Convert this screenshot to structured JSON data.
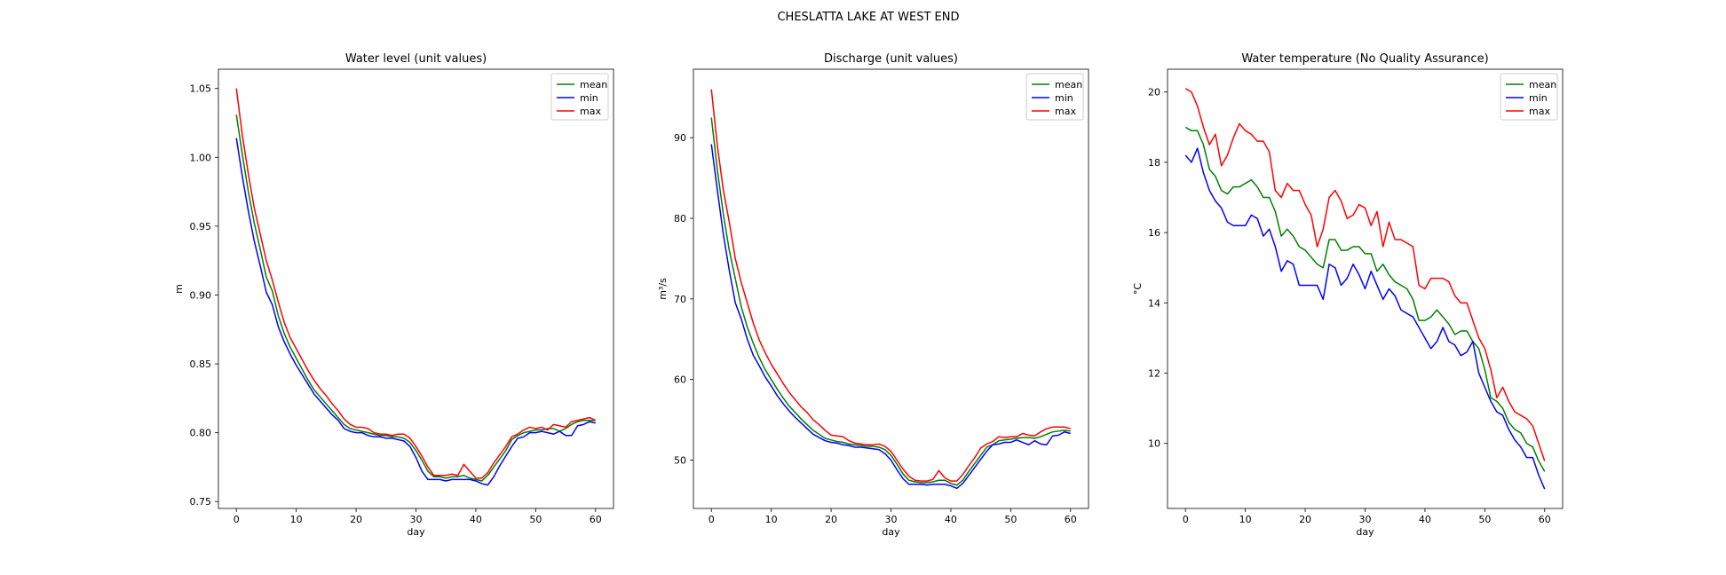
{
  "figure": {
    "suptitle": "CHESLATTA LAKE AT WEST END"
  },
  "chart_data": [
    {
      "type": "line",
      "title": "Water level (unit values)",
      "xlabel": "day",
      "ylabel": "m",
      "xlim": [
        -3,
        63
      ],
      "ylim": [
        0.745,
        1.064
      ],
      "xticks": [
        0,
        10,
        20,
        30,
        40,
        50,
        60
      ],
      "yticks": [
        0.75,
        0.8,
        0.85,
        0.9,
        0.95,
        1.0,
        1.05
      ],
      "ytick_labels": [
        "0.75",
        "0.80",
        "0.85",
        "0.90",
        "0.95",
        "1.00",
        "1.05"
      ],
      "legend": "top-right",
      "x": [
        0,
        1,
        2,
        3,
        4,
        5,
        6,
        7,
        8,
        9,
        10,
        11,
        12,
        13,
        14,
        15,
        16,
        17,
        18,
        19,
        20,
        21,
        22,
        23,
        24,
        25,
        26,
        27,
        28,
        29,
        30,
        31,
        32,
        33,
        34,
        35,
        36,
        37,
        38,
        39,
        40,
        41,
        42,
        43,
        44,
        45,
        46,
        47,
        48,
        49,
        50,
        51,
        52,
        53,
        54,
        55,
        56,
        57,
        58,
        59,
        60
      ],
      "series": [
        {
          "name": "mean",
          "color": "#008000",
          "values": [
            1.031,
            1.002,
            0.975,
            0.952,
            0.933,
            0.913,
            0.903,
            0.885,
            0.872,
            0.862,
            0.854,
            0.846,
            0.838,
            0.831,
            0.826,
            0.821,
            0.816,
            0.811,
            0.806,
            0.803,
            0.802,
            0.801,
            0.8,
            0.799,
            0.798,
            0.798,
            0.797,
            0.797,
            0.796,
            0.793,
            0.787,
            0.78,
            0.772,
            0.768,
            0.768,
            0.767,
            0.768,
            0.768,
            0.769,
            0.767,
            0.766,
            0.765,
            0.769,
            0.775,
            0.781,
            0.787,
            0.795,
            0.798,
            0.8,
            0.801,
            0.802,
            0.802,
            0.803,
            0.803,
            0.801,
            0.803,
            0.806,
            0.808,
            0.809,
            0.809,
            0.809
          ]
        },
        {
          "name": "min",
          "color": "#0000ff",
          "values": [
            1.014,
            0.986,
            0.961,
            0.939,
            0.921,
            0.902,
            0.893,
            0.877,
            0.866,
            0.857,
            0.849,
            0.842,
            0.835,
            0.828,
            0.823,
            0.818,
            0.813,
            0.809,
            0.803,
            0.801,
            0.8,
            0.8,
            0.798,
            0.797,
            0.797,
            0.796,
            0.796,
            0.795,
            0.794,
            0.79,
            0.782,
            0.772,
            0.766,
            0.766,
            0.766,
            0.765,
            0.766,
            0.766,
            0.766,
            0.766,
            0.765,
            0.763,
            0.762,
            0.768,
            0.776,
            0.783,
            0.79,
            0.796,
            0.797,
            0.8,
            0.8,
            0.801,
            0.8,
            0.799,
            0.801,
            0.798,
            0.798,
            0.805,
            0.806,
            0.808,
            0.807
          ]
        },
        {
          "name": "max",
          "color": "#ff0000",
          "values": [
            1.05,
            1.016,
            0.988,
            0.963,
            0.944,
            0.925,
            0.911,
            0.895,
            0.88,
            0.869,
            0.861,
            0.853,
            0.845,
            0.838,
            0.832,
            0.827,
            0.821,
            0.816,
            0.81,
            0.806,
            0.804,
            0.804,
            0.803,
            0.8,
            0.799,
            0.799,
            0.798,
            0.799,
            0.799,
            0.796,
            0.79,
            0.783,
            0.775,
            0.769,
            0.769,
            0.769,
            0.77,
            0.769,
            0.777,
            0.772,
            0.767,
            0.767,
            0.771,
            0.778,
            0.784,
            0.79,
            0.797,
            0.799,
            0.802,
            0.804,
            0.803,
            0.804,
            0.802,
            0.806,
            0.805,
            0.804,
            0.808,
            0.809,
            0.81,
            0.811,
            0.809
          ]
        }
      ]
    },
    {
      "type": "line",
      "title": "Discharge (unit values)",
      "xlabel": "day",
      "ylabel": "m³/s",
      "xlim": [
        -3,
        63
      ],
      "ylim": [
        44,
        98.5
      ],
      "xticks": [
        0,
        10,
        20,
        30,
        40,
        50,
        60
      ],
      "yticks": [
        50,
        60,
        70,
        80,
        90
      ],
      "ytick_labels": [
        "50",
        "60",
        "70",
        "80",
        "90"
      ],
      "legend": "top-right",
      "x": [
        0,
        1,
        2,
        3,
        4,
        5,
        6,
        7,
        8,
        9,
        10,
        11,
        12,
        13,
        14,
        15,
        16,
        17,
        18,
        19,
        20,
        21,
        22,
        23,
        24,
        25,
        26,
        27,
        28,
        29,
        30,
        31,
        32,
        33,
        34,
        35,
        36,
        37,
        38,
        39,
        40,
        41,
        42,
        43,
        44,
        45,
        46,
        47,
        48,
        49,
        50,
        51,
        52,
        53,
        54,
        55,
        56,
        57,
        58,
        59,
        60
      ],
      "series": [
        {
          "name": "mean",
          "color": "#008000",
          "values": [
            92.5,
            86.0,
            80.5,
            76.0,
            72.5,
            69.0,
            66.5,
            64.5,
            62.7,
            61.2,
            60.0,
            58.8,
            57.7,
            56.7,
            55.9,
            55.1,
            54.4,
            53.7,
            53.2,
            52.7,
            52.5,
            52.3,
            52.2,
            52.0,
            51.9,
            51.8,
            51.7,
            51.7,
            51.6,
            51.3,
            50.6,
            49.5,
            48.3,
            47.5,
            47.3,
            47.2,
            47.2,
            47.3,
            47.5,
            47.5,
            47.1,
            46.9,
            47.5,
            48.6,
            49.6,
            50.6,
            51.6,
            51.9,
            52.4,
            52.5,
            52.6,
            52.7,
            52.8,
            52.8,
            52.7,
            52.9,
            53.2,
            53.5,
            53.6,
            53.7,
            53.6
          ]
        },
        {
          "name": "min",
          "color": "#0000ff",
          "values": [
            89.2,
            83.5,
            78.0,
            73.5,
            69.5,
            67.5,
            65.0,
            63.0,
            61.7,
            60.3,
            59.2,
            58.0,
            57.0,
            56.1,
            55.3,
            54.6,
            53.9,
            53.2,
            52.8,
            52.4,
            52.2,
            52.1,
            51.9,
            51.8,
            51.6,
            51.6,
            51.5,
            51.4,
            51.3,
            50.8,
            50.0,
            48.8,
            47.7,
            47.0,
            47.0,
            47.0,
            46.9,
            47.0,
            47.0,
            47.0,
            46.8,
            46.5,
            47.1,
            48.1,
            49.1,
            50.1,
            51.1,
            51.9,
            52.0,
            52.2,
            52.2,
            52.5,
            52.2,
            51.9,
            52.4,
            52.0,
            51.9,
            53.0,
            53.1,
            53.5,
            53.3
          ]
        },
        {
          "name": "max",
          "color": "#ff0000",
          "values": [
            96.0,
            89.0,
            83.5,
            79.5,
            75.0,
            72.0,
            69.5,
            67.0,
            64.9,
            63.3,
            61.9,
            60.7,
            59.5,
            58.4,
            57.5,
            56.6,
            55.9,
            55.0,
            54.4,
            53.7,
            53.1,
            53.0,
            52.9,
            52.4,
            52.1,
            52.0,
            51.9,
            51.9,
            52.0,
            51.7,
            51.1,
            50.0,
            48.9,
            48.0,
            47.5,
            47.4,
            47.4,
            47.6,
            48.7,
            47.8,
            47.4,
            47.4,
            48.2,
            49.3,
            50.3,
            51.5,
            52.0,
            52.3,
            52.9,
            52.8,
            52.9,
            52.9,
            53.3,
            53.1,
            53.0,
            53.5,
            53.9,
            54.1,
            54.1,
            54.1,
            53.9
          ]
        }
      ]
    },
    {
      "type": "line",
      "title": "Water temperature (No Quality Assurance)",
      "xlabel": "day",
      "ylabel": "°C",
      "xlim": [
        -3,
        63
      ],
      "ylim": [
        8.15,
        20.65
      ],
      "xticks": [
        0,
        10,
        20,
        30,
        40,
        50,
        60
      ],
      "yticks": [
        10,
        12,
        14,
        16,
        18,
        20
      ],
      "ytick_labels": [
        "10",
        "12",
        "14",
        "16",
        "18",
        "20"
      ],
      "legend": "top-right",
      "x": [
        0,
        1,
        2,
        3,
        4,
        5,
        6,
        7,
        8,
        9,
        10,
        11,
        12,
        13,
        14,
        15,
        16,
        17,
        18,
        19,
        20,
        21,
        22,
        23,
        24,
        25,
        26,
        27,
        28,
        29,
        30,
        31,
        32,
        33,
        34,
        35,
        36,
        37,
        38,
        39,
        40,
        41,
        42,
        43,
        44,
        45,
        46,
        47,
        48,
        49,
        50,
        51,
        52,
        53,
        54,
        55,
        56,
        57,
        58,
        59,
        60
      ],
      "series": [
        {
          "name": "mean",
          "color": "#008000",
          "values": [
            19.0,
            18.9,
            18.9,
            18.5,
            17.8,
            17.6,
            17.2,
            17.1,
            17.3,
            17.3,
            17.4,
            17.5,
            17.3,
            17.0,
            17.0,
            16.6,
            15.9,
            16.1,
            15.9,
            15.6,
            15.5,
            15.3,
            15.1,
            15.0,
            15.8,
            15.8,
            15.5,
            15.5,
            15.6,
            15.6,
            15.4,
            15.4,
            14.9,
            15.1,
            14.8,
            14.6,
            14.5,
            14.4,
            14.1,
            13.5,
            13.5,
            13.6,
            13.8,
            13.6,
            13.4,
            13.1,
            13.2,
            13.2,
            12.9,
            12.7,
            12.1,
            11.3,
            11.2,
            11.0,
            10.6,
            10.4,
            10.3,
            10.0,
            9.9,
            9.5,
            9.2
          ]
        },
        {
          "name": "min",
          "color": "#0000ff",
          "values": [
            18.2,
            18.0,
            18.4,
            17.7,
            17.2,
            16.9,
            16.7,
            16.3,
            16.2,
            16.2,
            16.2,
            16.5,
            16.4,
            15.9,
            16.1,
            15.6,
            14.9,
            15.2,
            15.1,
            14.5,
            14.5,
            14.5,
            14.5,
            14.1,
            15.1,
            15.0,
            14.5,
            14.7,
            15.1,
            14.8,
            14.4,
            14.9,
            14.5,
            14.1,
            14.4,
            14.2,
            13.8,
            13.7,
            13.6,
            13.3,
            13.0,
            12.7,
            12.9,
            13.3,
            12.9,
            12.8,
            12.5,
            12.6,
            12.9,
            12.0,
            11.6,
            11.2,
            10.9,
            10.8,
            10.4,
            10.1,
            9.9,
            9.6,
            9.6,
            9.1,
            8.7
          ]
        },
        {
          "name": "max",
          "color": "#ff0000",
          "values": [
            20.1,
            20.0,
            19.6,
            19.0,
            18.5,
            18.8,
            17.9,
            18.2,
            18.7,
            19.1,
            18.9,
            18.8,
            18.6,
            18.6,
            18.3,
            17.2,
            17.0,
            17.4,
            17.2,
            17.2,
            16.8,
            16.5,
            15.6,
            16.1,
            17.0,
            17.2,
            16.9,
            16.4,
            16.5,
            16.8,
            16.7,
            16.2,
            16.6,
            15.6,
            16.3,
            15.8,
            15.8,
            15.7,
            15.6,
            14.5,
            14.4,
            14.7,
            14.7,
            14.7,
            14.6,
            14.2,
            14.0,
            14.0,
            13.5,
            13.0,
            12.7,
            12.1,
            11.3,
            11.6,
            11.2,
            10.9,
            10.8,
            10.7,
            10.5,
            10.0,
            9.5
          ]
        }
      ]
    }
  ]
}
